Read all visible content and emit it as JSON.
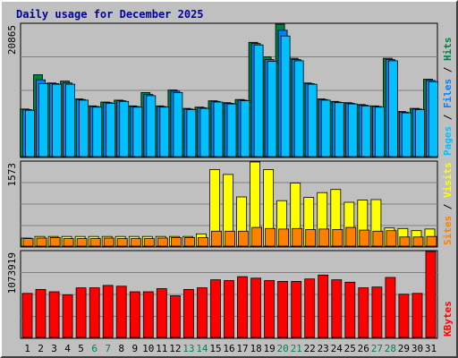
{
  "chart_data": {
    "type": "bar",
    "title": "Daily usage for December 2025",
    "categories": [
      "1",
      "2",
      "3",
      "4",
      "5",
      "6",
      "7",
      "8",
      "9",
      "10",
      "11",
      "12",
      "13",
      "14",
      "15",
      "16",
      "17",
      "18",
      "19",
      "20",
      "21",
      "22",
      "23",
      "24",
      "25",
      "26",
      "27",
      "28",
      "29",
      "30",
      "31"
    ],
    "weekend_days": [
      "6",
      "7",
      "13",
      "14",
      "20",
      "21",
      "27",
      "28"
    ],
    "panels": [
      {
        "id": "pages-files-hits",
        "max_label": "20865",
        "ymax": 20865,
        "legend": [
          {
            "text": "Pages",
            "color": "#00c0ff"
          },
          {
            "text": " / ",
            "color": "#000000"
          },
          {
            "text": "Files",
            "color": "#0080ff"
          },
          {
            "text": " / ",
            "color": "#000000"
          },
          {
            "text": "Hits",
            "color": "#008040"
          }
        ],
        "series": [
          {
            "name": "Hits",
            "color": "#008040",
            "values": [
              7500,
              12900,
              11600,
              11900,
              9100,
              8000,
              8600,
              8900,
              8000,
              10100,
              8000,
              10500,
              7600,
              7800,
              8800,
              8500,
              9000,
              18000,
              15700,
              20865,
              15500,
              11600,
              9100,
              8700,
              8500,
              8200,
              8000,
              15500,
              7100,
              7600,
              12200
            ]
          },
          {
            "name": "Files",
            "color": "#0080ff",
            "values": [
              7400,
              12100,
              11500,
              11600,
              9000,
              7900,
              8500,
              8800,
              7900,
              9800,
              7900,
              10300,
              7500,
              7700,
              8700,
              8400,
              8900,
              17800,
              15300,
              19900,
              15300,
              11500,
              9000,
              8600,
              8400,
              8100,
              7900,
              15300,
              7000,
              7500,
              12000
            ]
          },
          {
            "name": "Pages",
            "color": "#00c0ff",
            "values": [
              7300,
              11500,
              11400,
              11400,
              8900,
              7800,
              8400,
              8700,
              7800,
              9600,
              7800,
              10100,
              7400,
              7600,
              8600,
              8300,
              8800,
              17600,
              15000,
              19000,
              15100,
              11400,
              8900,
              8500,
              8300,
              8000,
              7800,
              15100,
              6900,
              7400,
              11800
            ]
          }
        ]
      },
      {
        "id": "sites-visits",
        "max_label": "1573",
        "ymax": 1573,
        "legend": [
          {
            "text": "Sites",
            "color": "#ff8000"
          },
          {
            "text": " / ",
            "color": "#000000"
          },
          {
            "text": "Visits",
            "color": "#ffff00"
          }
        ],
        "series": [
          {
            "name": "Visits",
            "color": "#ffff00",
            "values": [
              150,
              180,
              180,
              180,
              180,
              180,
              180,
              180,
              180,
              180,
              180,
              180,
              180,
              230,
              1430,
              1340,
              920,
              1573,
              1430,
              850,
              1180,
              910,
              1000,
              1060,
              820,
              860,
              870,
              340,
              330,
              290,
              320
            ]
          },
          {
            "name": "Sites",
            "color": "#ff8000",
            "values": [
              140,
              150,
              160,
              140,
              140,
              140,
              150,
              140,
              140,
              140,
              150,
              160,
              160,
              160,
              280,
              280,
              280,
              350,
              330,
              320,
              330,
              310,
              320,
              310,
              350,
              300,
              280,
              290,
              170,
              170,
              180
            ]
          }
        ]
      },
      {
        "id": "kbytes",
        "max_label": "1073919",
        "ymax": 1073919,
        "legend": [
          {
            "text": "KBytes",
            "color": "#ff0000"
          }
        ],
        "series": [
          {
            "name": "KBytes",
            "color": "#ff0000",
            "values": [
              550000,
              600000,
              570000,
              530000,
              620000,
              620000,
              650000,
              640000,
              570000,
              570000,
              610000,
              520000,
              600000,
              620000,
              720000,
              710000,
              760000,
              740000,
              710000,
              700000,
              700000,
              730000,
              780000,
              720000,
              690000,
              620000,
              630000,
              750000,
              540000,
              550000,
              1073919
            ]
          }
        ]
      }
    ]
  }
}
